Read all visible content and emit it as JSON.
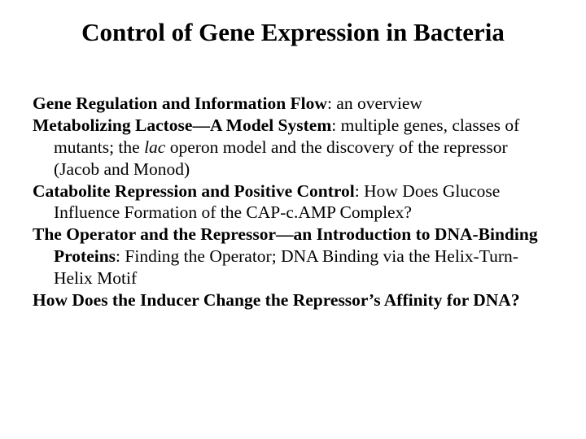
{
  "title": "Control of Gene Expression in Bacteria",
  "topics": {
    "t1": {
      "heading": "Gene Regulation and Information Flow",
      "body": ": an overview"
    },
    "t2": {
      "heading": "Metabolizing Lactose—A Model System",
      "body_a": ": multiple genes, classes of mutants; the ",
      "italic": "lac",
      "body_b": " operon model and the discovery of the repressor (Jacob and Monod)"
    },
    "t3": {
      "heading": "Catabolite Repression and Positive Control",
      "body": ": How Does Glucose Influence Formation of the CAP-c.AMP Complex?"
    },
    "t4": {
      "heading": "The Operator and the Repressor—an Introduction to DNA-Binding Proteins",
      "body": ": Finding the Operator; DNA Binding via the Helix-Turn-Helix Motif"
    },
    "t5": {
      "heading": "How Does the Inducer Change the Repressor’s Affinity for DNA?",
      "body": ""
    }
  },
  "colors": {
    "background": "#ffffff",
    "text": "#000000"
  },
  "typography": {
    "title_fontsize": 31,
    "body_fontsize": 21.5,
    "font_family": "Times New Roman"
  }
}
